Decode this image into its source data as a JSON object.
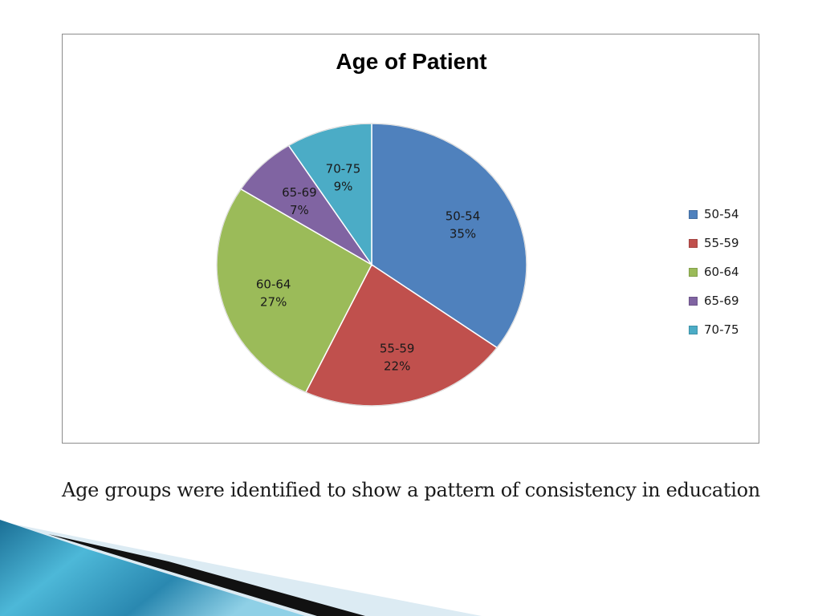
{
  "slide": {
    "caption": "Age groups were identified to show a pattern of consistency in education"
  },
  "chart_data": {
    "type": "pie",
    "title": "Age of Patient",
    "categories": [
      "50-54",
      "55-59",
      "60-64",
      "65-69",
      "70-75"
    ],
    "values": [
      35,
      22,
      27,
      7,
      9
    ],
    "value_format": "percent",
    "colors": [
      "#4f81bd",
      "#c0504d",
      "#9bbb59",
      "#8064a2",
      "#4bacc6"
    ],
    "data_labels": [
      {
        "category": "50-54",
        "value": "35%"
      },
      {
        "category": "55-59",
        "value": "22%"
      },
      {
        "category": "60-64",
        "value": "27%"
      },
      {
        "category": "65-69",
        "value": "7%"
      },
      {
        "category": "70-75",
        "value": "9%"
      }
    ],
    "legend": {
      "placement": "right",
      "items": [
        "50-54",
        "55-59",
        "60-64",
        "65-69",
        "70-75"
      ]
    }
  }
}
